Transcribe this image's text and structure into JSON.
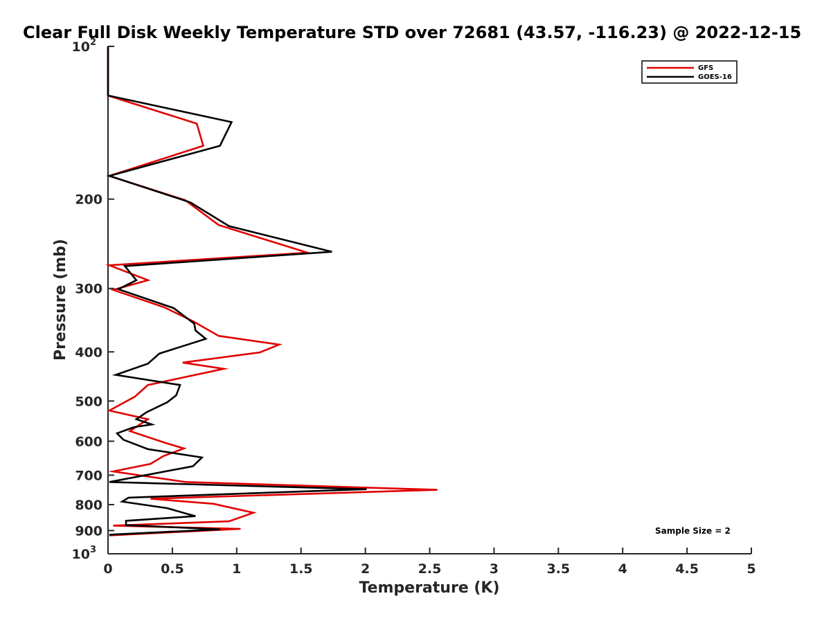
{
  "chart_data": {
    "type": "line",
    "title": "Clear Full Disk Weekly Temperature STD over 72681 (43.57, -116.23) @ 2022-12-15",
    "xlabel": "Temperature (K)",
    "ylabel": "Pressure (mb)",
    "xlim": [
      0,
      5
    ],
    "ylim": [
      100,
      1000
    ],
    "y_scale": "log",
    "y_reversed": true,
    "grid": false,
    "legend_position": "top-right",
    "x_ticks": [
      "0",
      "0.5",
      "1",
      "1.5",
      "2",
      "2.5",
      "3",
      "3.5",
      "4",
      "4.5",
      "5"
    ],
    "y_ticks": [
      {
        "value": 100,
        "base": "10",
        "exp": "2"
      },
      {
        "value": 200,
        "base": "200",
        "exp": ""
      },
      {
        "value": 300,
        "base": "300",
        "exp": ""
      },
      {
        "value": 400,
        "base": "400",
        "exp": ""
      },
      {
        "value": 500,
        "base": "500",
        "exp": ""
      },
      {
        "value": 600,
        "base": "600",
        "exp": ""
      },
      {
        "value": 700,
        "base": "700",
        "exp": ""
      },
      {
        "value": 800,
        "base": "800",
        "exp": ""
      },
      {
        "value": 900,
        "base": "900",
        "exp": ""
      },
      {
        "value": 1000,
        "base": "10",
        "exp": "3"
      }
    ],
    "annotation": "Sample Size = 2",
    "series": [
      {
        "name": "GFS",
        "color": "#e00000",
        "points": [
          [
            0,
            100
          ],
          [
            0,
            125
          ],
          [
            0.69,
            142
          ],
          [
            0.74,
            157
          ],
          [
            0.01,
            180
          ],
          [
            0.6,
            201
          ],
          [
            0.86,
            225
          ],
          [
            1.55,
            255
          ],
          [
            0.01,
            270
          ],
          [
            0.31,
            289
          ],
          [
            0.04,
            302
          ],
          [
            0.44,
            327
          ],
          [
            0.66,
            348
          ],
          [
            0.86,
            372
          ],
          [
            1.33,
            387
          ],
          [
            1.18,
            401
          ],
          [
            0.58,
            420
          ],
          [
            0.9,
            432
          ],
          [
            0.31,
            465
          ],
          [
            0.21,
            490
          ],
          [
            0.01,
            522
          ],
          [
            0.31,
            543
          ],
          [
            0.17,
            573
          ],
          [
            0.44,
            604
          ],
          [
            0.59,
            620
          ],
          [
            0.43,
            642
          ],
          [
            0.33,
            665
          ],
          [
            0.04,
            688
          ],
          [
            0.6,
            722
          ],
          [
            2.56,
            748
          ],
          [
            0.33,
            779
          ],
          [
            0.82,
            797
          ],
          [
            1.13,
            830
          ],
          [
            0.94,
            863
          ],
          [
            0.04,
            880
          ],
          [
            1.03,
            893
          ],
          [
            0.01,
            920
          ]
        ]
      },
      {
        "name": "GOES-16",
        "color": "#000000",
        "points": [
          [
            0,
            100
          ],
          [
            0,
            125
          ],
          [
            0.96,
            141
          ],
          [
            0.87,
            157
          ],
          [
            0.01,
            180
          ],
          [
            0.64,
            203
          ],
          [
            0.94,
            226
          ],
          [
            1.74,
            254
          ],
          [
            0.13,
            271
          ],
          [
            0.22,
            289
          ],
          [
            0.08,
            301
          ],
          [
            0.51,
            328
          ],
          [
            0.67,
            352
          ],
          [
            0.68,
            363
          ],
          [
            0.76,
            377
          ],
          [
            0.4,
            403
          ],
          [
            0.31,
            422
          ],
          [
            0.06,
            444
          ],
          [
            0.56,
            465
          ],
          [
            0.53,
            487
          ],
          [
            0.46,
            503
          ],
          [
            0.3,
            526
          ],
          [
            0.22,
            543
          ],
          [
            0.34,
            556
          ],
          [
            0.2,
            563
          ],
          [
            0.07,
            579
          ],
          [
            0.12,
            596
          ],
          [
            0.31,
            622
          ],
          [
            0.73,
            646
          ],
          [
            0.66,
            672
          ],
          [
            0.01,
            722
          ],
          [
            2.01,
            746
          ],
          [
            0.16,
            775
          ],
          [
            0.11,
            789
          ],
          [
            0.46,
            813
          ],
          [
            0.62,
            835
          ],
          [
            0.68,
            843
          ],
          [
            0.14,
            861
          ],
          [
            0.14,
            878
          ],
          [
            0.87,
            895
          ],
          [
            0.01,
            917
          ]
        ]
      }
    ]
  }
}
